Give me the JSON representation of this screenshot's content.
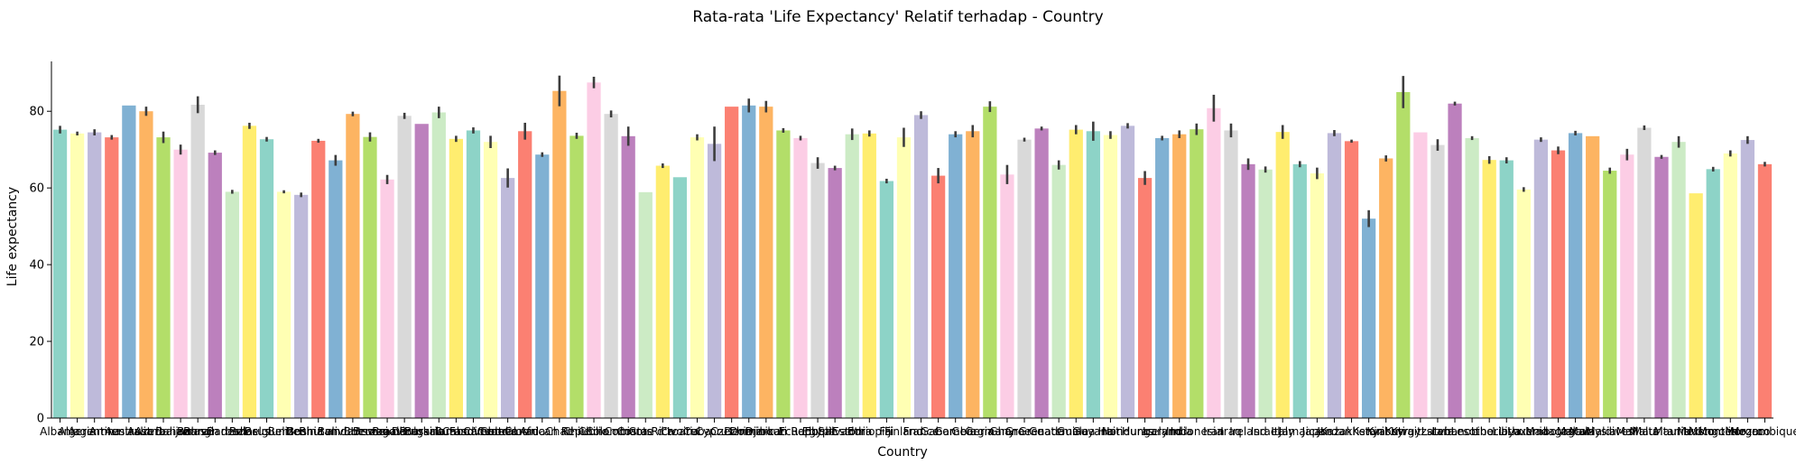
{
  "chart_data": {
    "type": "bar",
    "title": "Rata-rata 'Life Expectancy' Relatif terhadap - Country",
    "xlabel": "Country",
    "ylabel": "Life expectancy",
    "ylim": [
      0,
      93
    ],
    "yticks": [
      0,
      20,
      40,
      60,
      80
    ],
    "grid": false,
    "legend": "none",
    "palette": [
      "#8DD3C7",
      "#FFFFB3",
      "#BEBADA",
      "#FB8072",
      "#80B1D3",
      "#FDB462",
      "#B3DE69",
      "#FCCDE5",
      "#D9D9D9",
      "#BC80BD",
      "#CCEBC5",
      "#FFED6F"
    ],
    "categories": [
      "Albania",
      "Algeria",
      "Argentina",
      "Armenia",
      "Australia",
      "Austria",
      "Azerbaijan",
      "Bahamas",
      "Bahrain",
      "Bangladesh",
      "Barbados",
      "Belarus",
      "Belgium",
      "Belize",
      "Benin",
      "Bhutan",
      "Bolivia",
      "Bosnia and Herzegovina",
      "Botswana",
      "Brazil",
      "Brunei Darussalam",
      "Bulgaria",
      "Burkina Faso",
      "Burundi",
      "Cabo Verde",
      "Cambodia",
      "Cameroon",
      "Canada",
      "Central African Republic",
      "Chad",
      "Chile",
      "China",
      "Colombia",
      "Comoros",
      "Costa Rica",
      "Cote d'Ivoire",
      "Croatia",
      "Cuba",
      "Cyprus",
      "Czechia",
      "Denmark",
      "Djibouti",
      "Dominican Republic",
      "Ecuador",
      "Egypt",
      "El Salvador",
      "Estonia",
      "Ethiopia",
      "Fiji",
      "Finland",
      "France",
      "Gabon",
      "Gambia",
      "Georgia",
      "Germany",
      "Ghana",
      "Greece",
      "Grenada",
      "Guatemala",
      "Guinea",
      "Guyana",
      "Haiti",
      "Honduras",
      "Hungary",
      "Iceland",
      "India",
      "Indonesia",
      "Iran",
      "Iraq",
      "Ireland",
      "Israel",
      "Italy",
      "Jamaica",
      "Japan",
      "Jordan",
      "Kazakhstan",
      "Kenya",
      "Kiribati",
      "Kuwait",
      "Kyrgyzstan",
      "Latvia",
      "Lebanon",
      "Lesotho",
      "Liberia",
      "Libya",
      "Lithuania",
      "Luxembourg",
      "Madagascar",
      "Malawi",
      "Malaysia",
      "Maldives",
      "Mali",
      "Malta",
      "Mauritania",
      "Mauritius",
      "Mexico",
      "Mongolia",
      "Montenegro",
      "Morocco",
      "Mozambique"
    ],
    "values": [
      75.2,
      74.2,
      74.5,
      73.2,
      81.5,
      80.0,
      73.2,
      70.0,
      81.7,
      69.2,
      59.0,
      76.2,
      72.7,
      59.0,
      58.2,
      72.3,
      67.2,
      79.3,
      73.3,
      62.2,
      78.8,
      76.7,
      79.7,
      72.8,
      75.0,
      72.0,
      62.6,
      74.8,
      68.7,
      85.3,
      73.6,
      87.5,
      79.3,
      73.5,
      58.9,
      65.8,
      62.8,
      73.2,
      71.5,
      81.2,
      81.5,
      81.2,
      75.0,
      73.0,
      66.5,
      65.2,
      74.0,
      74.2,
      61.8,
      73.2,
      79.0,
      63.2,
      74.0,
      74.8,
      81.2,
      63.5,
      72.6,
      75.5,
      66.0,
      75.2,
      74.8,
      73.8,
      76.2,
      62.6,
      73.0,
      74.0,
      75.3,
      80.8,
      75.0,
      66.2,
      64.8,
      74.6,
      66.2,
      63.8,
      74.3,
      72.2,
      52.0,
      67.7,
      85.0,
      74.5,
      71.2,
      82.0,
      73.0,
      67.3,
      67.2,
      59.6,
      72.6,
      69.8,
      74.3,
      73.5,
      64.5,
      68.7,
      75.7,
      68.1,
      72.0,
      58.6,
      64.9,
      69.0,
      72.5,
      66.2
    ],
    "errors": [
      1.0,
      0.5,
      0.8,
      0.6,
      0.0,
      1.2,
      1.5,
      1.3,
      2.2,
      0.6,
      0.5,
      0.8,
      0.6,
      0.4,
      0.6,
      0.5,
      1.4,
      0.6,
      1.2,
      1.2,
      0.8,
      0.0,
      1.5,
      0.8,
      0.8,
      1.6,
      2.5,
      2.2,
      0.6,
      4.0,
      0.8,
      1.5,
      0.9,
      2.5,
      0.0,
      0.6,
      0.0,
      0.8,
      4.5,
      0.0,
      1.8,
      1.5,
      0.6,
      0.6,
      1.5,
      0.6,
      1.5,
      0.8,
      0.6,
      2.5,
      1.0,
      2.0,
      0.8,
      1.6,
      1.4,
      2.5,
      0.5,
      0.5,
      1.2,
      1.2,
      2.5,
      1.0,
      0.7,
      1.8,
      0.6,
      1.0,
      1.5,
      3.5,
      1.8,
      1.5,
      0.8,
      1.8,
      0.8,
      1.5,
      0.8,
      0.4,
      2.2,
      0.8,
      4.2,
      0.0,
      1.5,
      0.5,
      0.5,
      1.0,
      0.8,
      0.6,
      0.6,
      1.0,
      0.6,
      0.0,
      0.8,
      1.5,
      0.6,
      0.5,
      1.5,
      0.0,
      0.6,
      0.8,
      1.0,
      0.6
    ]
  }
}
